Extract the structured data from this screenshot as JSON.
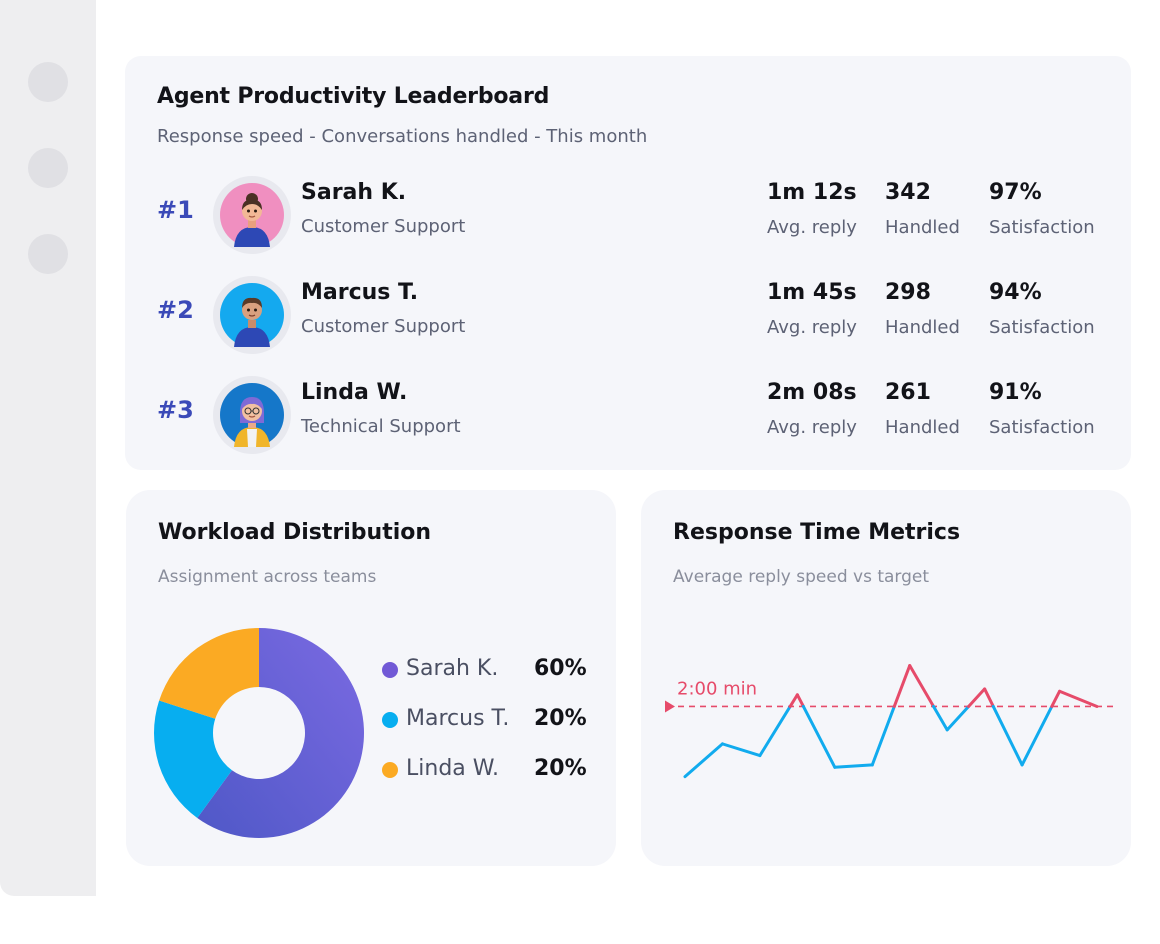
{
  "leaderboard": {
    "title": "Agent Productivity Leaderboard",
    "subtitle": "Response speed - Conversations handled - This month",
    "agents": [
      {
        "rank": "#1",
        "name": "Sarah K.",
        "team": "Customer Support",
        "avg_reply": "1m 12s",
        "avg_reply_label": "Avg. reply",
        "handled": "342",
        "handled_label": "Handled",
        "satisfaction": "97%",
        "satisfaction_label": "Satisfaction",
        "avatar_color": "#f08fc0",
        "avatar_icon": "avatar-woman-icon"
      },
      {
        "rank": "#2",
        "name": "Marcus T.",
        "team": "Customer Support",
        "avg_reply": "1m 45s",
        "avg_reply_label": "Avg. reply",
        "handled": "298",
        "handled_label": "Handled",
        "satisfaction": "94%",
        "satisfaction_label": "Satisfaction",
        "avatar_color": "#14a9ef",
        "avatar_icon": "avatar-man-icon"
      },
      {
        "rank": "#3",
        "name": "Linda W.",
        "team": "Technical Support",
        "avg_reply": "2m 08s",
        "avg_reply_label": "Avg. reply",
        "handled": "261",
        "handled_label": "Handled",
        "satisfaction": "91%",
        "satisfaction_label": "Satisfaction",
        "avatar_color": "#1577c9",
        "avatar_icon": "avatar-woman-glasses-icon"
      }
    ]
  },
  "workload": {
    "title": "Workload Distribution",
    "subtitle": "Assignment across teams",
    "chart_data": {
      "type": "pie",
      "series": [
        {
          "name": "Sarah K.",
          "value": 60,
          "label": "60%",
          "color": "#7b67e0"
        },
        {
          "name": "Marcus T.",
          "value": 20,
          "label": "20%",
          "color": "#07aef0"
        },
        {
          "name": "Linda W.",
          "value": 20,
          "label": "20%",
          "color": "#fbaa23"
        }
      ]
    }
  },
  "response": {
    "title": "Response Time Metrics",
    "subtitle": "Average reply speed vs target",
    "chart_data": {
      "type": "line",
      "target_label": "2:00 min",
      "target": 120,
      "values": [
        60,
        88,
        78,
        130,
        68,
        70,
        155,
        100,
        135,
        70,
        133,
        120
      ],
      "ylim": [
        40,
        170
      ],
      "below_color": "#11abee",
      "above_color": "#e64b6a"
    }
  }
}
